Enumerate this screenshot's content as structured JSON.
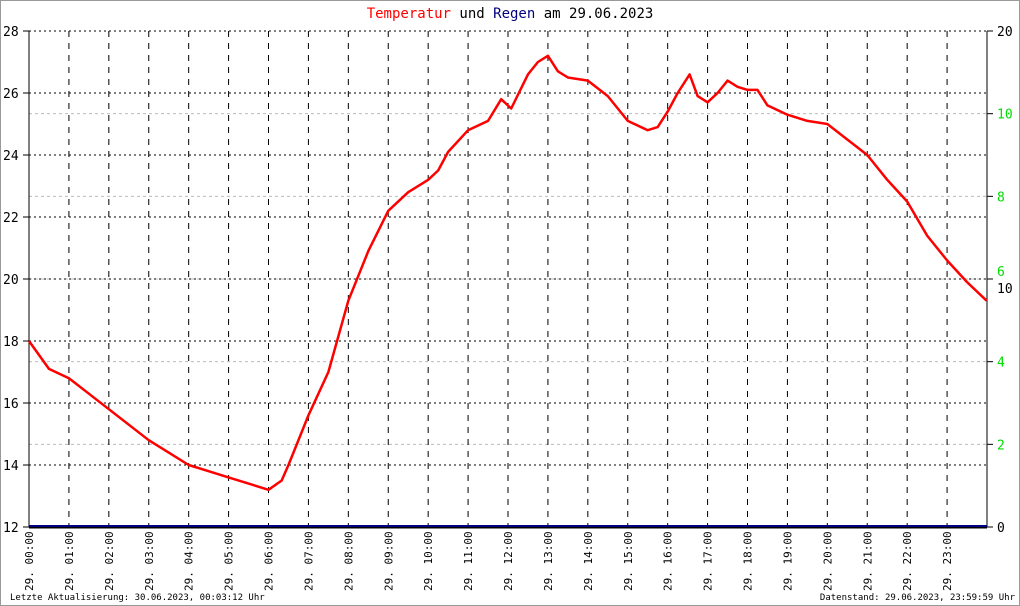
{
  "title": {
    "part1": "Temperatur",
    "part2": " und ",
    "part3": "Regen",
    "part4": " am 29.06.2023"
  },
  "footer": {
    "left": "Letzte Aktualisierung: 30.06.2023, 00:03:12 Uhr",
    "right": "Datenstand: 29.06.2023, 23:59:59 Uhr"
  },
  "colors": {
    "temperature": "#ff0000",
    "rain": "#000080",
    "rain_axis": "#00dd00"
  },
  "chart_data": {
    "type": "line",
    "title": "Temperatur und Regen am 29.06.2023",
    "x_tick_labels": [
      "29. 00:00",
      "29. 01:00",
      "29. 02:00",
      "29. 03:00",
      "29. 04:00",
      "29. 05:00",
      "29. 06:00",
      "29. 07:00",
      "29. 08:00",
      "29. 09:00",
      "29. 10:00",
      "29. 11:00",
      "29. 12:00",
      "29. 13:00",
      "29. 14:00",
      "29. 15:00",
      "29. 16:00",
      "29. 17:00",
      "29. 18:00",
      "29. 19:00",
      "29. 20:00",
      "29. 21:00",
      "29. 22:00",
      "29. 23:00"
    ],
    "xlim_hours": [
      0,
      24
    ],
    "ylim_left": [
      12,
      28
    ],
    "y_ticks_left": [
      12,
      14,
      16,
      18,
      20,
      22,
      24,
      26,
      28
    ],
    "y_ticks_right_black": [
      0,
      10,
      20
    ],
    "y_ticks_right_green": [
      2,
      4,
      6,
      8,
      10
    ],
    "grid": true,
    "series": [
      {
        "name": "Temperatur",
        "color": "#ff0000",
        "x_hours": [
          0,
          0.5,
          1,
          1.5,
          2,
          2.5,
          3,
          3.5,
          4,
          4.5,
          5,
          5.5,
          6,
          6.33,
          6.5,
          7,
          7.5,
          8,
          8.5,
          9,
          9.5,
          10,
          10.25,
          10.5,
          11,
          11.5,
          11.83,
          12.08,
          12.5,
          12.75,
          13,
          13.25,
          13.5,
          14,
          14.5,
          15,
          15.5,
          15.75,
          16,
          16.25,
          16.55,
          16.75,
          17,
          17.25,
          17.5,
          17.75,
          18,
          18.25,
          18.5,
          19,
          19.5,
          20,
          20.5,
          21,
          21.5,
          22,
          22.5,
          23,
          23.5,
          23.99
        ],
        "y": [
          18.0,
          17.1,
          16.8,
          16.3,
          15.8,
          15.3,
          14.8,
          14.4,
          14.0,
          13.8,
          13.6,
          13.4,
          13.2,
          13.5,
          14.0,
          15.6,
          17.0,
          19.3,
          20.9,
          22.2,
          22.8,
          23.2,
          23.5,
          24.1,
          24.8,
          25.1,
          25.8,
          25.5,
          26.6,
          27.0,
          27.2,
          26.7,
          26.5,
          26.4,
          25.9,
          25.1,
          24.8,
          24.9,
          25.4,
          26.0,
          26.6,
          25.9,
          25.7,
          26.0,
          26.4,
          26.2,
          26.1,
          26.1,
          25.6,
          25.3,
          25.1,
          25.0,
          24.5,
          24.0,
          23.2,
          22.5,
          21.4,
          20.6,
          19.9,
          19.3
        ]
      },
      {
        "name": "Regen",
        "color": "#000080",
        "x_hours": [
          0,
          24
        ],
        "y": [
          0,
          0
        ]
      }
    ]
  }
}
